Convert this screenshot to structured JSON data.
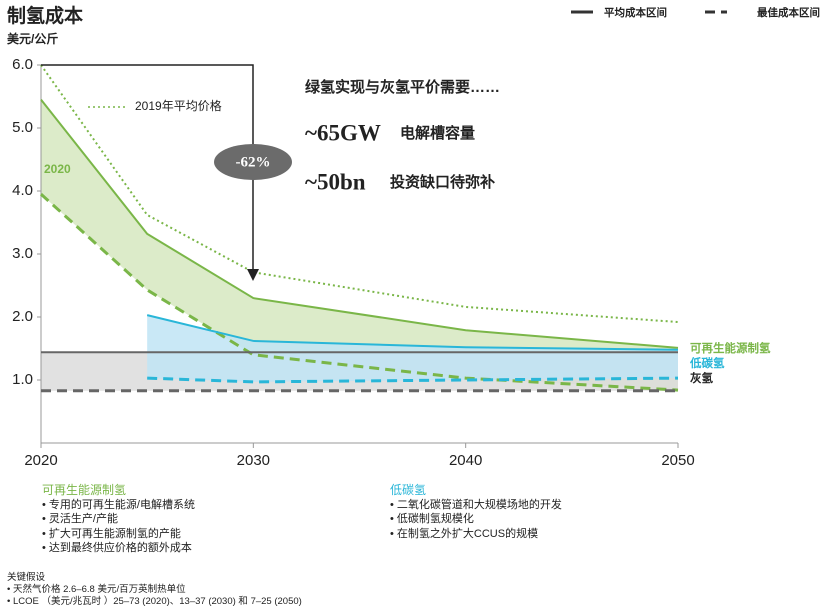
{
  "chart_data": {
    "type": "line",
    "title": "制氢成本",
    "y_label": "美元/公斤",
    "x": [
      2020,
      2025,
      2030,
      2040,
      2050
    ],
    "xlim": [
      2020,
      2050
    ],
    "xticks": [
      2020,
      2030,
      2040,
      2050
    ],
    "ylim": [
      0,
      6.0
    ],
    "yticks": [
      {
        "value": 1,
        "label": "1.0"
      },
      {
        "value": 2,
        "label": "2.0"
      },
      {
        "value": 3,
        "label": "3.0"
      },
      {
        "value": 4,
        "label": "4.0"
      },
      {
        "value": 5,
        "label": "5.0"
      },
      {
        "value": 6,
        "label": "6.0"
      }
    ],
    "legend": {
      "avg": "平均成本区间",
      "best": "最佳成本区间"
    },
    "groups": [
      {
        "name": "可再生能源制氢",
        "color": "#7ab648",
        "fill": "#d6e8bf",
        "avg": [
          5.45,
          3.32,
          2.3,
          1.79,
          1.51
        ],
        "best": [
          3.95,
          2.43,
          1.4,
          1.03,
          0.84
        ]
      },
      {
        "name": "灰氢",
        "color": "#666666",
        "fill": "#dcdcdc",
        "avg": [
          1.44,
          1.44,
          1.44,
          1.44,
          1.44
        ],
        "best": [
          0.83,
          0.83,
          0.83,
          0.83,
          0.83
        ]
      },
      {
        "name": "低碳氢",
        "color": "#29b6d8",
        "fill": "#bfe4f4",
        "avg": [
          null,
          2.03,
          1.62,
          1.52,
          1.48
        ],
        "best": [
          null,
          1.03,
          0.97,
          1.0,
          1.03
        ]
      }
    ],
    "reference": {
      "name": "2019年平均价格",
      "color": "#7ab648",
      "values": [
        6.0,
        3.62,
        2.71,
        2.16,
        1.92
      ]
    },
    "annotations": {
      "year_label": "2020",
      "change": "-62%",
      "headline": "绿氢实现与灰氢平价需要……",
      "stat1": "~65GW",
      "stat1_text": "电解槽容量",
      "stat2": "~50bn",
      "stat2_text": "投资缺口待弥补"
    }
  },
  "notes": {
    "renewable": {
      "title": "可再生能源制氢",
      "items": [
        "• 专用的可再生能源/电解槽系统",
        "• 灵活生产/产能",
        "• 扩大可再生能源制氢的产能",
        "• 达到最终供应价格的额外成本"
      ]
    },
    "lowcarbon": {
      "title": "低碳氢",
      "items": [
        "• 二氧化碳管道和大规模场地的开发",
        "• 低碳制氢规模化",
        "• 在制氢之外扩大CCUS的规模"
      ]
    },
    "assumptions": {
      "title": "关键假设",
      "items": [
        "• 天然气价格 2.6–6.8 美元/百万英制热单位",
        "• LCOE （美元/兆瓦时 ）25–73 (2020)、13–37 (2030) 和 7–25 (2050)"
      ]
    }
  }
}
